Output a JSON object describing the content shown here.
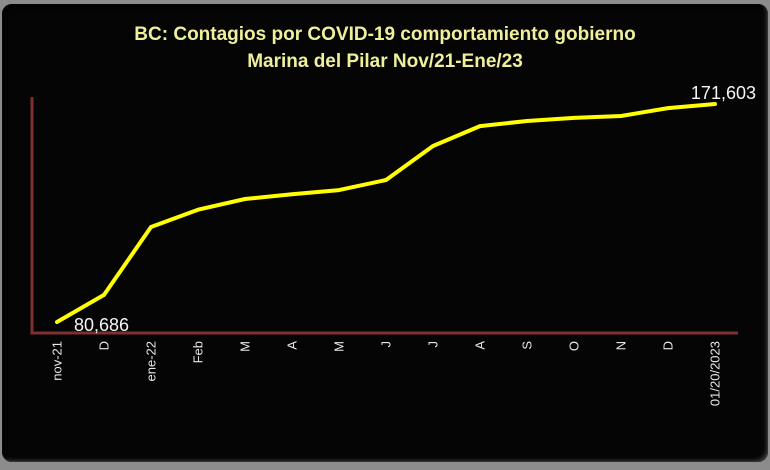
{
  "window": {
    "page_background": "#8C8C8C",
    "panel_background": "#050505"
  },
  "chart_data": {
    "type": "line",
    "title": "BC: Contagios por COVID-19 comportamiento gobierno",
    "subtitle": "Marina del Pilar Nov/21-Ene/23",
    "xlabel": "",
    "ylabel": "",
    "legend": "none",
    "grid": false,
    "categories": [
      "nov-21",
      "D",
      "ene-22",
      "Feb",
      "M",
      "A",
      "M",
      "J",
      "J",
      "A",
      "S",
      "O",
      "N",
      "D",
      "01/20/2023"
    ],
    "values": [
      80686,
      92000,
      120300,
      127500,
      132000,
      134000,
      135700,
      139900,
      154100,
      162400,
      164500,
      165800,
      166600,
      169900,
      171603
    ],
    "ylim": [
      80686,
      171603
    ],
    "annotations": {
      "first_point_label": "80,686",
      "last_point_label": "171,603"
    },
    "colors": {
      "line": "#FFFF00",
      "axis": "#7E3030",
      "title": "#EFEF9C",
      "tick_labels": "#E8E8E8",
      "value_labels": "#F5F5F5"
    }
  }
}
